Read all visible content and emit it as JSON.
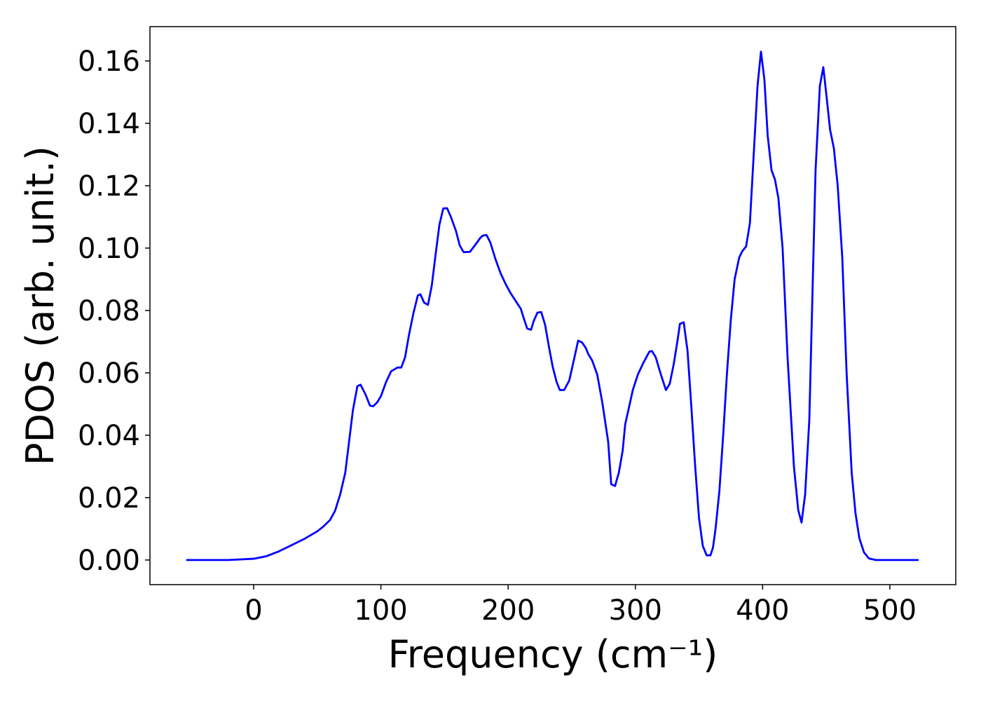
{
  "chart_data": {
    "type": "line",
    "xlabel": "Frequency (cm⁻¹)",
    "ylabel": "PDOS (arb. unit.)",
    "color": "#0000ff",
    "x": [
      -53,
      -20,
      0,
      10,
      20,
      30,
      40,
      50,
      55,
      60,
      64,
      68,
      72,
      75,
      78,
      81.5,
      84,
      88,
      91.4,
      94,
      97,
      100,
      104,
      108,
      113,
      116,
      119,
      122,
      125.5,
      129,
      131,
      134,
      137,
      140,
      143,
      146,
      149,
      152,
      155,
      159,
      162,
      165,
      170,
      175,
      178,
      180,
      183,
      186,
      190,
      194,
      198,
      202,
      206,
      210,
      212.5,
      215,
      218,
      220,
      223,
      226,
      229,
      232,
      235,
      238,
      240.6,
      244,
      248,
      251.6,
      255,
      258,
      261,
      263,
      266,
      270,
      274,
      278.6,
      281,
      284,
      287,
      290,
      292,
      295,
      298,
      302,
      306,
      311,
      313,
      316,
      320,
      324,
      327,
      330,
      333,
      335,
      338,
      341,
      344,
      347,
      350,
      353,
      356,
      359,
      361,
      363,
      366,
      369,
      372,
      375,
      378,
      381.6,
      384,
      387,
      390,
      393,
      396,
      398.7,
      401.4,
      404,
      407,
      409.7,
      412.4,
      415.7,
      419.6,
      424.6,
      428,
      430.6,
      433.4,
      436.7,
      441.6,
      445,
      447.7,
      450.4,
      453,
      456,
      459,
      462.6,
      466,
      470,
      473,
      476,
      479.6,
      483.5,
      489,
      522.6
    ],
    "values": [
      0,
      0,
      0.0004,
      0.0012,
      0.0028,
      0.0048,
      0.0068,
      0.0092,
      0.0108,
      0.0128,
      0.0158,
      0.021,
      0.028,
      0.038,
      0.048,
      0.0557,
      0.0562,
      0.053,
      0.0495,
      0.0493,
      0.0505,
      0.0525,
      0.057,
      0.0605,
      0.0617,
      0.0617,
      0.065,
      0.072,
      0.079,
      0.0848,
      0.0852,
      0.0825,
      0.0818,
      0.088,
      0.098,
      0.1075,
      0.1127,
      0.1128,
      0.11,
      0.1055,
      0.1008,
      0.0987,
      0.0988,
      0.1015,
      0.1032,
      0.104,
      0.1042,
      0.1018,
      0.0965,
      0.092,
      0.0885,
      0.0855,
      0.083,
      0.0805,
      0.0772,
      0.0742,
      0.0738,
      0.0765,
      0.0793,
      0.0795,
      0.0755,
      0.0685,
      0.062,
      0.0572,
      0.0545,
      0.0545,
      0.0575,
      0.064,
      0.0703,
      0.0698,
      0.068,
      0.066,
      0.064,
      0.0595,
      0.0505,
      0.038,
      0.0243,
      0.0237,
      0.028,
      0.035,
      0.0435,
      0.049,
      0.0545,
      0.0595,
      0.063,
      0.0668,
      0.067,
      0.065,
      0.0595,
      0.0545,
      0.0565,
      0.0625,
      0.07,
      0.0757,
      0.0762,
      0.067,
      0.049,
      0.03,
      0.0135,
      0.0045,
      0.0015,
      0.0015,
      0.004,
      0.01,
      0.022,
      0.04,
      0.06,
      0.077,
      0.09,
      0.097,
      0.099,
      0.1005,
      0.108,
      0.13,
      0.152,
      0.163,
      0.154,
      0.136,
      0.125,
      0.122,
      0.116,
      0.1,
      0.065,
      0.03,
      0.016,
      0.012,
      0.021,
      0.045,
      0.125,
      0.152,
      0.158,
      0.148,
      0.138,
      0.132,
      0.12,
      0.097,
      0.06,
      0.028,
      0.015,
      0.007,
      0.0025,
      0.0005,
      0,
      0
    ],
    "xlim": [
      -81.5,
      551.8
    ],
    "ylim": [
      -0.0079,
      0.171
    ],
    "xticks": [
      0,
      100,
      200,
      300,
      400,
      500
    ],
    "yticks": [
      {
        "value": 0,
        "label": "0.00"
      },
      0.02,
      0.04,
      0.06,
      0.08,
      {
        "value": 0.1,
        "label": "0.10"
      },
      0.12,
      0.14,
      0.16
    ]
  }
}
